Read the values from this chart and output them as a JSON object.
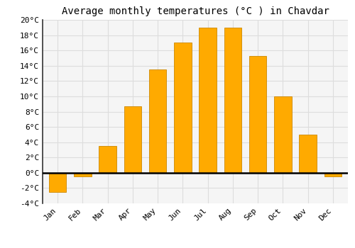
{
  "months": [
    "Jan",
    "Feb",
    "Mar",
    "Apr",
    "May",
    "Jun",
    "Jul",
    "Aug",
    "Sep",
    "Oct",
    "Nov",
    "Dec"
  ],
  "values": [
    -2.5,
    -0.5,
    3.5,
    8.7,
    13.5,
    17.0,
    19.0,
    19.0,
    15.3,
    10.0,
    5.0,
    -0.5
  ],
  "bar_color": "#FFAA00",
  "bar_edge_color": "#CC8800",
  "title": "Average monthly temperatures (°C ) in Chavdar",
  "ylim": [
    -4,
    20
  ],
  "yticks": [
    -4,
    -2,
    0,
    2,
    4,
    6,
    8,
    10,
    12,
    14,
    16,
    18,
    20
  ],
  "ytick_labels": [
    "-4°C",
    "-2°C",
    "0°C",
    "2°C",
    "4°C",
    "6°C",
    "8°C",
    "10°C",
    "12°C",
    "14°C",
    "16°C",
    "18°C",
    "20°C"
  ],
  "background_color": "#ffffff",
  "plot_bg_color": "#f5f5f5",
  "grid_color": "#dddddd",
  "zero_line_color": "#000000",
  "spine_color": "#333333",
  "title_fontsize": 10,
  "tick_fontsize": 8,
  "bar_width": 0.7
}
